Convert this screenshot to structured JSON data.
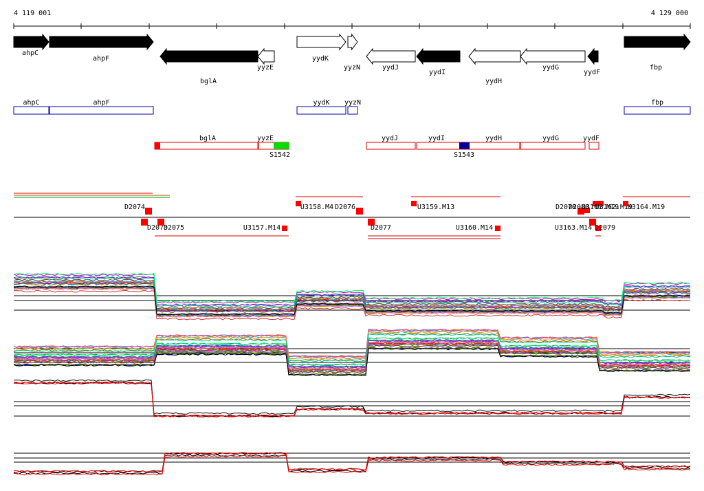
{
  "coords": {
    "start": "4 119 001",
    "end": "4 129 000"
  },
  "genes_top": [
    {
      "id": "ahpC",
      "dir": "right",
      "filled": true
    },
    {
      "id": "ahpF",
      "dir": "right",
      "filled": true
    },
    {
      "id": "bglA",
      "dir": "left",
      "filled": true
    },
    {
      "id": "yyzE",
      "dir": "left",
      "filled": false
    },
    {
      "id": "yydK",
      "dir": "right",
      "filled": false
    },
    {
      "id": "yyzN",
      "dir": "right",
      "filled": false
    },
    {
      "id": "yydJ",
      "dir": "left",
      "filled": false
    },
    {
      "id": "yydI",
      "dir": "left",
      "filled": true
    },
    {
      "id": "yydH",
      "dir": "left",
      "filled": false
    },
    {
      "id": "yydG",
      "dir": "left",
      "filled": false
    },
    {
      "id": "yydF",
      "dir": "left",
      "filled": true
    },
    {
      "id": "fbp",
      "dir": "right",
      "filled": true
    }
  ],
  "genes_blue": [
    "ahpC",
    "ahpF",
    "yydK",
    "yyzN",
    "fbp"
  ],
  "genes_red": [
    "bglA",
    "yyzE",
    "yydJ",
    "yydI",
    "yydH",
    "yydG",
    "yydF"
  ],
  "markers": [
    {
      "id": "S1542",
      "color": "#00dd00"
    },
    {
      "id": "S1543",
      "color": "#000099"
    }
  ],
  "features_above": [
    "D2074",
    "U3158.M4",
    "D2076",
    "U3159.M13",
    "D2078",
    "D2080",
    "U3161.M19",
    "U3162.M19",
    "U3164.M19"
  ],
  "features_below": [
    "D2073",
    "D2075",
    "U3157.M14",
    "D2077",
    "U3160.M14",
    "U3163.M14",
    "D2079"
  ]
}
